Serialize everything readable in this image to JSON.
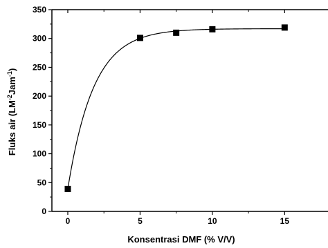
{
  "chart_data": {
    "type": "scatter",
    "xlabel": "Konsentrasi DMF (% V/V)",
    "ylabel": {
      "parts": [
        "Fluks air (LM",
        "-2",
        "Jam",
        "-1",
        ")"
      ]
    },
    "xlim": [
      -1.1,
      18
    ],
    "ylim": [
      0,
      350
    ],
    "x_ticks": [
      0,
      5,
      10,
      15
    ],
    "y_ticks": [
      0,
      50,
      100,
      150,
      200,
      250,
      300,
      350
    ],
    "x": [
      0,
      5,
      7.5,
      10,
      15
    ],
    "y": [
      39,
      301,
      310,
      316,
      319
    ],
    "marker": "square",
    "fit_curve": "exponential",
    "color": "#000000",
    "grid": false,
    "legend": "none"
  }
}
